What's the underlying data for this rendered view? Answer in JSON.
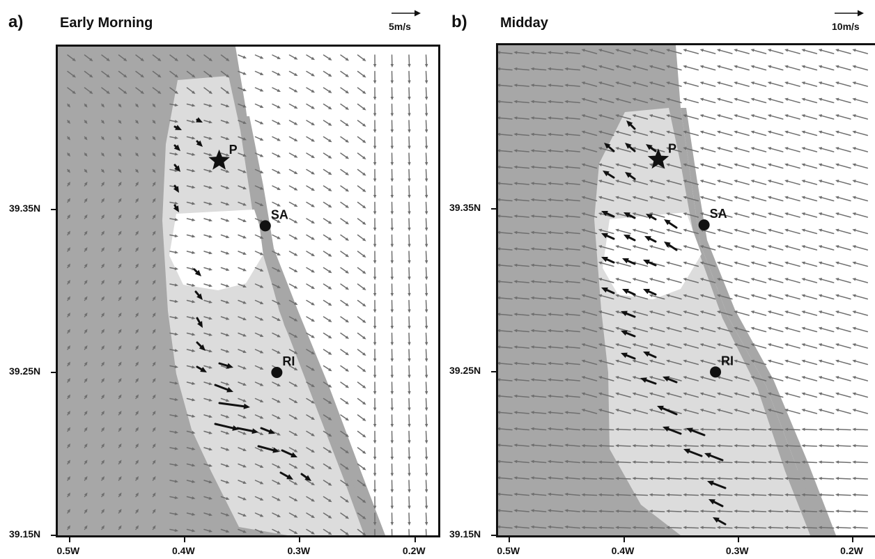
{
  "colors": {
    "land": "#a7a7a7",
    "sea": "#ffffff",
    "wetland": "#dcdcdc",
    "vector_regular": "#6e6e6e",
    "vector_highlight": "#111111",
    "frame": "#111111"
  },
  "panels": [
    {
      "letter": "a)",
      "title": "Early Morning",
      "scale_label": "5m/s",
      "wind_direction": "east-southeast",
      "sites": [
        {
          "code": "P",
          "marker": "star",
          "lon": -0.37,
          "lat": 39.38
        },
        {
          "code": "SA",
          "marker": "circle",
          "lon": -0.33,
          "lat": 39.34
        },
        {
          "code": "RI",
          "marker": "circle",
          "lon": -0.32,
          "lat": 39.25
        }
      ]
    },
    {
      "letter": "b)",
      "title": "Midday",
      "scale_label": "10m/s",
      "wind_direction": "west-northwest",
      "sites": [
        {
          "code": "P",
          "marker": "star",
          "lon": -0.37,
          "lat": 39.38
        },
        {
          "code": "SA",
          "marker": "circle",
          "lon": -0.33,
          "lat": 39.34
        },
        {
          "code": "RI",
          "marker": "circle",
          "lon": -0.32,
          "lat": 39.25
        }
      ]
    }
  ],
  "axes": {
    "x_ticks": [
      "0.5W",
      "0.4W",
      "0.3W",
      "0.2W"
    ],
    "x_values": [
      -0.5,
      -0.4,
      -0.3,
      -0.2
    ],
    "y_ticks": [
      "39.35N",
      "39.25N",
      "39.15N"
    ],
    "y_values": [
      39.35,
      39.25,
      39.15
    ],
    "lon_range": [
      -0.51,
      -0.18
    ],
    "lat_range": [
      39.15,
      39.45
    ]
  }
}
